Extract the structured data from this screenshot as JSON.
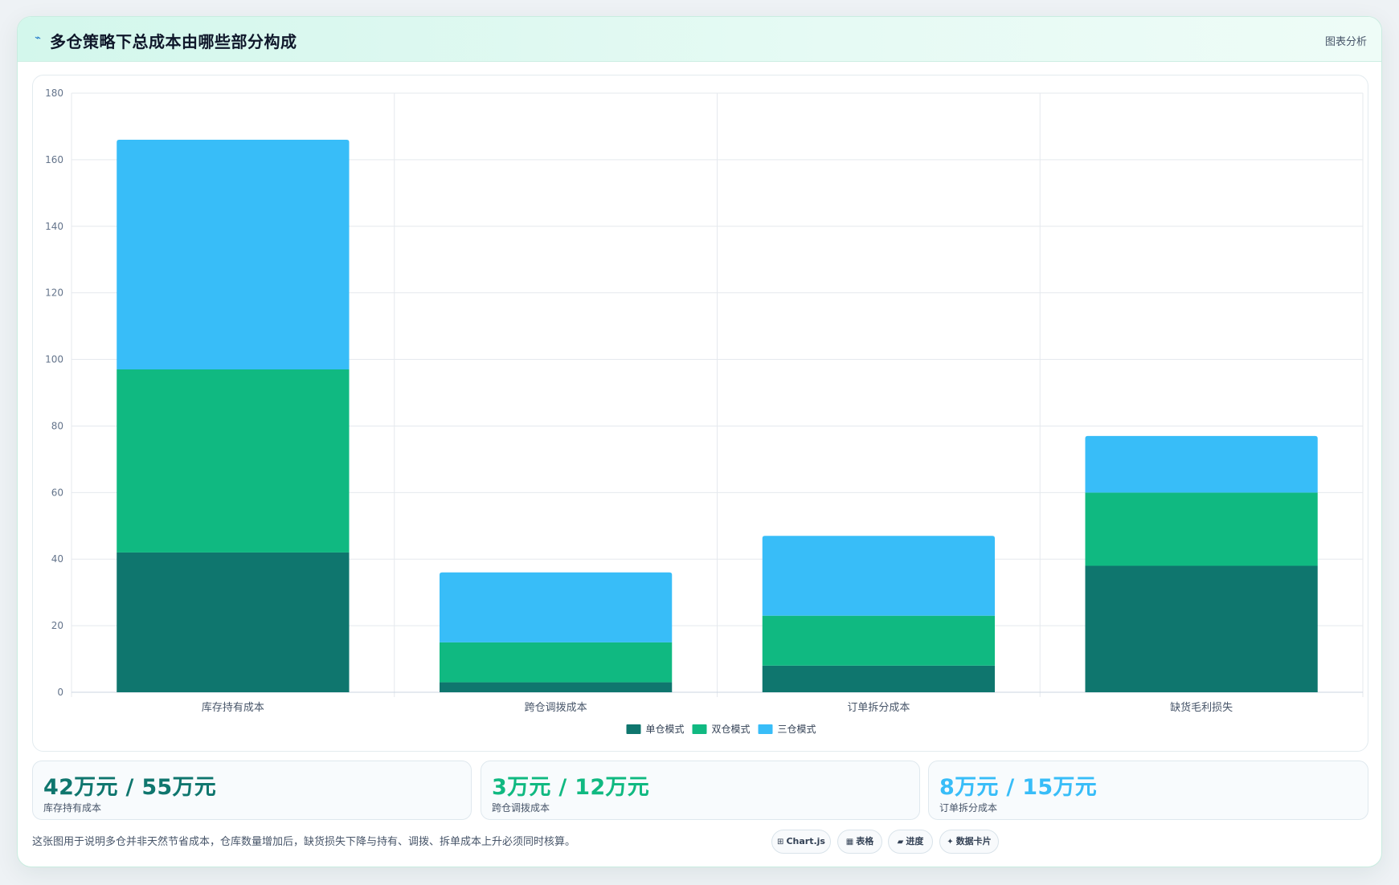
{
  "header": {
    "icon": "trend-icon",
    "title": "多仓策略下总成本由哪些部分构成",
    "meta": "图表分析"
  },
  "chart_data": {
    "type": "bar",
    "stacked": true,
    "categories": [
      "库存持有成本",
      "跨仓调拨成本",
      "订单拆分成本",
      "缺货毛利损失"
    ],
    "series": [
      {
        "name": "单仓模式",
        "values": [
          42,
          3,
          8,
          38
        ],
        "color": "#0f766e"
      },
      {
        "name": "双仓模式",
        "values": [
          55,
          12,
          15,
          22
        ],
        "color": "#10b981"
      },
      {
        "name": "三仓模式",
        "values": [
          69,
          21,
          24,
          17
        ],
        "color": "#38bdf8"
      }
    ],
    "ylim": [
      0,
      180
    ],
    "yticks": [
      0,
      20,
      40,
      60,
      80,
      100,
      120,
      140,
      160,
      180
    ],
    "grid": true,
    "legend": "bottom",
    "title": "",
    "xlabel": "",
    "ylabel": ""
  },
  "stats": [
    {
      "value": "42万元 / 55万元",
      "label": "库存持有成本",
      "color": "#0f766e"
    },
    {
      "value": "3万元 / 12万元",
      "label": "跨仓调拨成本",
      "color": "#10b981"
    },
    {
      "value": "8万元 / 15万元",
      "label": "订单拆分成本",
      "color": "#38bdf8"
    }
  ],
  "footer": {
    "note": "这张图用于说明多仓并非天然节省成本，仓库数量增加后，缺货损失下降与持有、调拨、拆单成本上升必须同时核算。",
    "chips": [
      {
        "icon": "chart-icon",
        "glyph": "⊞",
        "label": "Chart.js"
      },
      {
        "icon": "table-icon",
        "glyph": "▦",
        "label": "表格"
      },
      {
        "icon": "progress-icon",
        "glyph": "▰",
        "label": "进度"
      },
      {
        "icon": "sparkle-icon",
        "glyph": "✦",
        "label": "数据卡片"
      }
    ]
  }
}
